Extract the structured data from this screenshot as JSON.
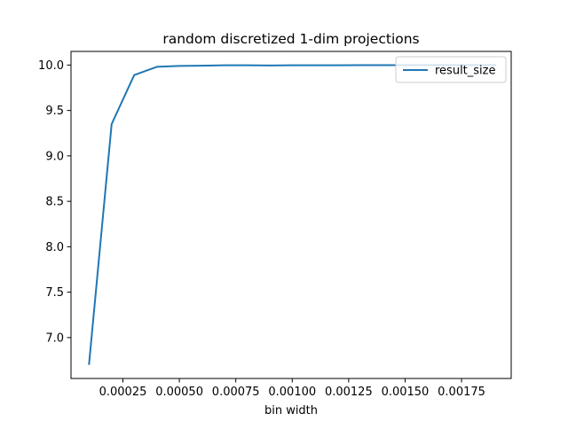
{
  "chart_data": {
    "type": "line",
    "title": "random discretized 1-dim projections",
    "xlabel": "bin width",
    "ylabel": "",
    "xlim": [
      2e-05,
      0.00197
    ],
    "ylim": [
      6.55,
      10.15
    ],
    "grid": false,
    "legend_position": "top-right",
    "x_ticks": [
      0.00025,
      0.0005,
      0.00075,
      0.001,
      0.00125,
      0.0015,
      0.00175
    ],
    "x_tick_labels": [
      "0.00025",
      "0.00050",
      "0.00075",
      "0.00100",
      "0.00125",
      "0.00150",
      "0.00175"
    ],
    "y_ticks": [
      7.0,
      7.5,
      8.0,
      8.5,
      9.0,
      9.5,
      10.0
    ],
    "y_tick_labels": [
      "7.0",
      "7.5",
      "8.0",
      "8.5",
      "9.0",
      "9.5",
      "10.0"
    ],
    "series": [
      {
        "name": "result_size",
        "color": "#1f77b4",
        "x": [
          0.0001,
          0.0002,
          0.0003,
          0.0004,
          0.0005,
          0.0006,
          0.0007,
          0.0008,
          0.0009,
          0.001,
          0.0011,
          0.0012,
          0.0013,
          0.0014,
          0.0015,
          0.0016,
          0.0017,
          0.0018,
          0.0019
        ],
        "values": [
          6.71,
          9.35,
          9.89,
          9.98,
          9.99,
          9.993,
          9.997,
          9.997,
          9.995,
          9.998,
          9.998,
          9.998,
          9.999,
          9.999,
          9.999,
          10.0,
          10.0,
          10.0,
          10.0
        ]
      }
    ]
  }
}
